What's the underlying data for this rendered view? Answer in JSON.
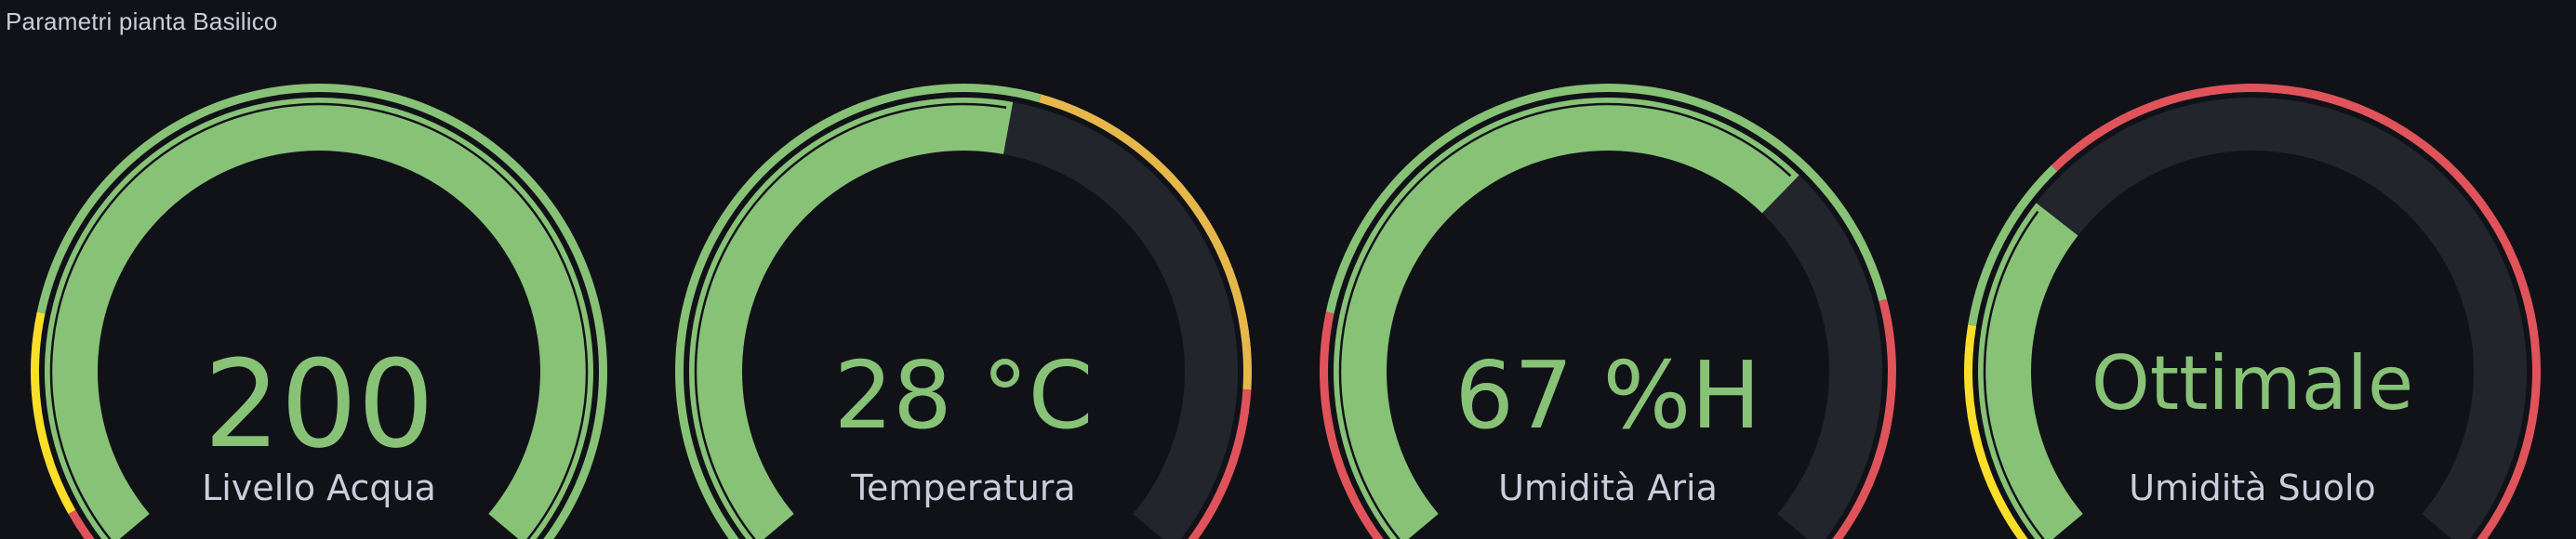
{
  "panel": {
    "title": "Parametri pianta Basilico"
  },
  "colors": {
    "background": "#111217",
    "track": "#22252b",
    "green": "#87c277",
    "yellow": "#fade2a",
    "orange": "#e6b84b",
    "red": "#e0535b",
    "label": "#ccccdc"
  },
  "gauges": [
    {
      "name": "livello-acqua",
      "value_text": "200",
      "label": "Livello Acqua",
      "fill_fraction": 1.0,
      "value_color": "#87c277",
      "thresholds": [
        {
          "to": 0.04,
          "color": "#e0535b"
        },
        {
          "to": 0.2,
          "color": "#fade2a"
        },
        {
          "to": 1.0,
          "color": "#87c277"
        }
      ]
    },
    {
      "name": "temperatura",
      "value_text": "28 °C",
      "label": "Temperatura",
      "fill_fraction": 0.54,
      "value_color": "#87c277",
      "thresholds": [
        {
          "to": 0.56,
          "color": "#87c277"
        },
        {
          "to": 0.86,
          "color": "#e6b84b"
        },
        {
          "to": 1.0,
          "color": "#e0535b"
        }
      ]
    },
    {
      "name": "umidita-aria",
      "value_text": "67 %H",
      "label": "Umidità Aria",
      "fill_fraction": 0.67,
      "value_color": "#87c277",
      "thresholds": [
        {
          "to": 0.2,
          "color": "#e0535b"
        },
        {
          "to": 0.79,
          "color": "#87c277"
        },
        {
          "to": 1.0,
          "color": "#e0535b"
        }
      ]
    },
    {
      "name": "umidita-suolo",
      "value_text": "Ottimale",
      "label": "Umidità Suolo",
      "fill_fraction": 0.3,
      "value_color": "#87c277",
      "thresholds": [
        {
          "to": 0.19,
          "color": "#fade2a"
        },
        {
          "to": 0.33,
          "color": "#87c277"
        },
        {
          "to": 1.0,
          "color": "#e0535b"
        }
      ]
    }
  ]
}
